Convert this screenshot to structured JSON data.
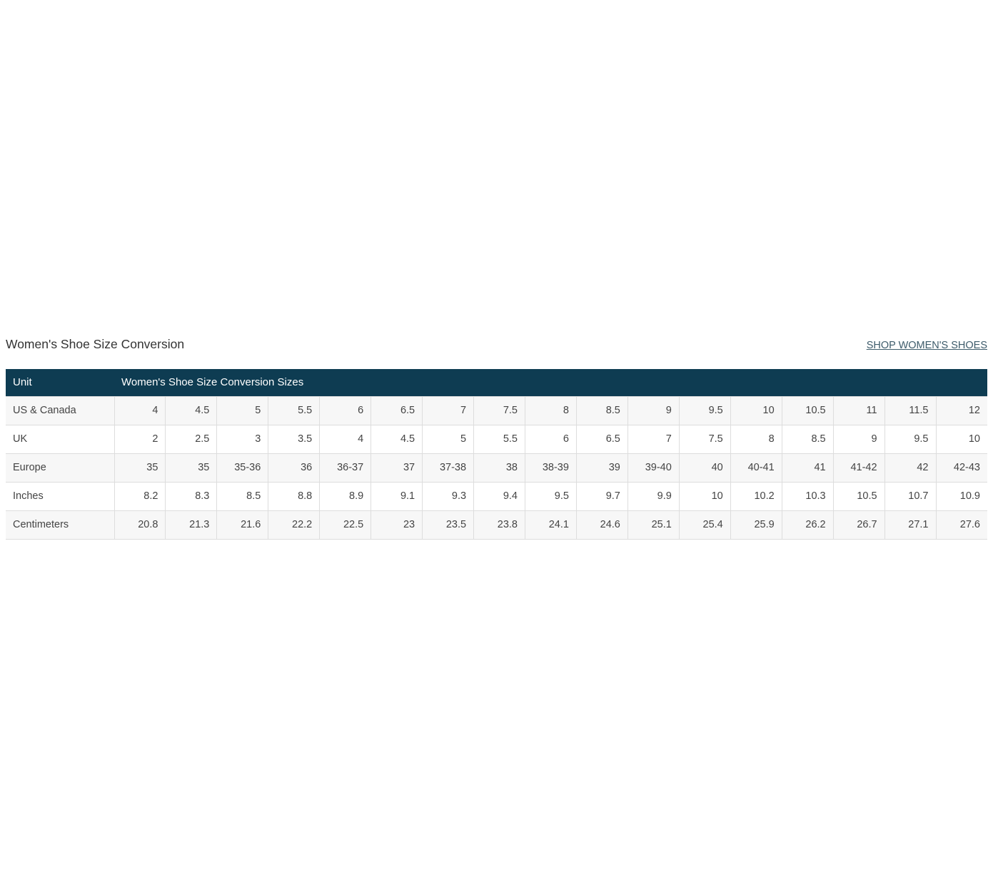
{
  "page": {
    "title": "Women's Shoe Size Conversion",
    "shop_link_label": "SHOP WOMEN'S SHOES"
  },
  "table": {
    "header": {
      "unit_label": "Unit",
      "sizes_label": "Women's Shoe Size Conversion Sizes"
    },
    "rows": [
      {
        "label": "US & Canada",
        "values": [
          "4",
          "4.5",
          "5",
          "5.5",
          "6",
          "6.5",
          "7",
          "7.5",
          "8",
          "8.5",
          "9",
          "9.5",
          "10",
          "10.5",
          "11",
          "11.5",
          "12"
        ]
      },
      {
        "label": "UK",
        "values": [
          "2",
          "2.5",
          "3",
          "3.5",
          "4",
          "4.5",
          "5",
          "5.5",
          "6",
          "6.5",
          "7",
          "7.5",
          "8",
          "8.5",
          "9",
          "9.5",
          "10"
        ]
      },
      {
        "label": "Europe",
        "values": [
          "35",
          "35",
          "35-36",
          "36",
          "36-37",
          "37",
          "37-38",
          "38",
          "38-39",
          "39",
          "39-40",
          "40",
          "40-41",
          "41",
          "41-42",
          "42",
          "42-43"
        ]
      },
      {
        "label": "Inches",
        "values": [
          "8.2",
          "8.3",
          "8.5",
          "8.8",
          "8.9",
          "9.1",
          "9.3",
          "9.4",
          "9.5",
          "9.7",
          "9.9",
          "10",
          "10.2",
          "10.3",
          "10.5",
          "10.7",
          "10.9"
        ]
      },
      {
        "label": "Centimeters",
        "values": [
          "20.8",
          "21.3",
          "21.6",
          "22.2",
          "22.5",
          "23",
          "23.5",
          "23.8",
          "24.1",
          "24.6",
          "25.1",
          "25.4",
          "25.9",
          "26.2",
          "26.7",
          "27.1",
          "27.6"
        ]
      }
    ]
  },
  "colors": {
    "header_bg": "#0e3c52",
    "header_text": "#ffffff",
    "row_stripe": "#f7f7f7",
    "cell_border": "#dddddd",
    "body_text": "#444444",
    "title_text": "#333333",
    "link_text": "#3e5c6b"
  }
}
